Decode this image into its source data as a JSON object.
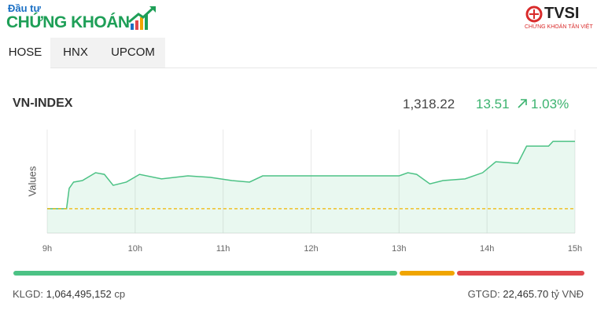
{
  "header": {
    "brand_small": "Đầu tư",
    "brand_big": "CHỨNG KHOÁN",
    "partner": "TVSI",
    "partner_sub": "CHỨNG KHOÁN TÂN VIỆT"
  },
  "tabs": [
    {
      "label": "HOSE",
      "active": true
    },
    {
      "label": "HNX",
      "active": false
    },
    {
      "label": "UPCOM",
      "active": false
    }
  ],
  "index": {
    "name": "VN-INDEX",
    "value": "1,318.22",
    "change": "13.51",
    "percent": "1.03%"
  },
  "chart_data": {
    "type": "line",
    "y_label": "Values",
    "x": [
      9.0,
      9.22,
      9.25,
      9.3,
      9.4,
      9.55,
      9.65,
      9.75,
      9.9,
      10.05,
      10.3,
      10.6,
      10.85,
      11.1,
      11.3,
      11.45,
      11.5,
      13.0,
      13.1,
      13.2,
      13.35,
      13.5,
      13.75,
      13.95,
      14.1,
      14.35,
      14.45,
      14.7,
      14.75,
      15.0
    ],
    "series": [
      {
        "color": "#4cc285",
        "values": [
          1304.71,
          1304.71,
          1308.8,
          1310.05,
          1310.36,
          1311.93,
          1311.6,
          1309.4,
          1310.05,
          1311.6,
          1310.7,
          1311.3,
          1311.0,
          1310.36,
          1310.05,
          1311.3,
          1311.3,
          1311.3,
          1311.93,
          1311.6,
          1309.7,
          1310.36,
          1310.7,
          1311.93,
          1314.13,
          1313.8,
          1317.27,
          1317.27,
          1318.22,
          1318.22
        ]
      }
    ],
    "reference": 1304.71,
    "reference_color": "#f0b400",
    "xlim": [
      9,
      15
    ],
    "ylim": [
      1299.8,
      1320.6
    ],
    "xticks": [
      {
        "value": 9,
        "label": "9h"
      },
      {
        "value": 10,
        "label": "10h"
      },
      {
        "value": 11,
        "label": "11h"
      },
      {
        "value": 12,
        "label": "12h"
      },
      {
        "value": 13,
        "label": "13h"
      },
      {
        "value": 14,
        "label": "14h"
      },
      {
        "value": 15,
        "label": "15h"
      }
    ],
    "grid": true
  },
  "breadth": {
    "values": [
      488,
      70,
      162
    ],
    "colors": [
      "#4cc285",
      "#f0a500",
      "#e0474c"
    ]
  },
  "footer": {
    "volume_label": "KLGD:",
    "volume": "1,064,495,152",
    "volume_unit": "cp",
    "turnover_label": "GTGD:",
    "turnover": "22,465.70",
    "turnover_unit": "tỷ VNĐ"
  }
}
